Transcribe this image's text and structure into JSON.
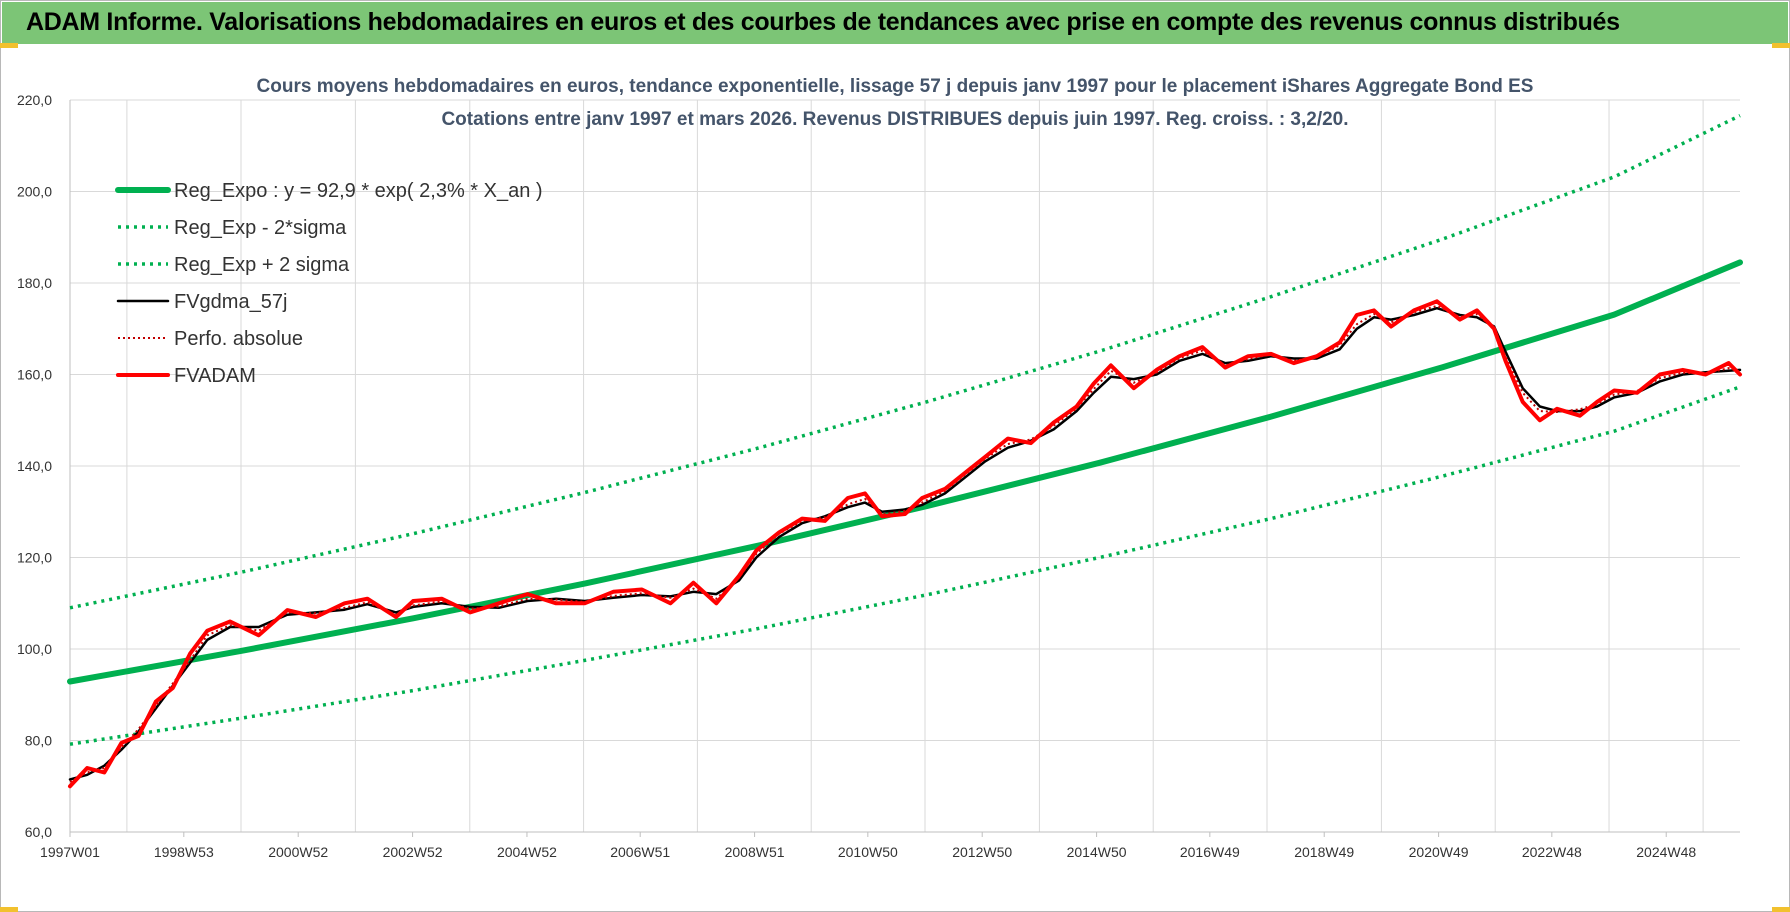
{
  "banner": {
    "title": "ADAM Informe. Valorisations hebdomadaires en euros et des courbes de tendances avec prise en compte des revenus connus distribués"
  },
  "colors": {
    "banner_bg": "#7cc576",
    "trend_green": "#00b050",
    "smooth_black": "#000000",
    "price_red": "#ff0000",
    "perf_red": "#c00000",
    "grid": "#d9d9d9",
    "title_text": "#44546a"
  },
  "chart_data": {
    "type": "line",
    "title_line1": "Cours moyens hebdomadaires en euros, tendance exponentielle, lissage 57 j depuis janv 1997 pour le placement iShares Aggregate Bond ES",
    "title_line2": "Cotations entre janv 1997 et mars 2026. Revenus DISTRIBUES depuis juin 1997. Reg. croiss. : 3,2/20.",
    "x_range": [
      1997.0,
      2026.2
    ],
    "ylim": [
      60,
      220
    ],
    "y_ticks": [
      60,
      80,
      100,
      120,
      140,
      160,
      180,
      200,
      220
    ],
    "y_tick_labels": [
      "60,0",
      "80,0",
      "100,0",
      "120,0",
      "140,0",
      "160,0",
      "180,0",
      "200,0",
      "220,0"
    ],
    "x_ticks": [
      1997.0,
      1998.99,
      2000.99,
      2002.99,
      2004.99,
      2006.97,
      2008.97,
      2010.95,
      2012.95,
      2014.95,
      2016.93,
      2018.93,
      2020.93,
      2022.91,
      2024.91
    ],
    "x_tick_labels": [
      "1997W01",
      "1998W53",
      "2000W52",
      "2002W52",
      "2004W52",
      "2006W51",
      "2008W51",
      "2010W50",
      "2012W50",
      "2014W50",
      "2016W49",
      "2018W49",
      "2020W49",
      "2022W48",
      "2024W48"
    ],
    "grid": true,
    "legend_position": "top-left",
    "series": [
      {
        "name": "Reg_Expo : y = 92,9 * exp( 2,3% *  X_an )",
        "style": "solid-thick",
        "color": "#00b050",
        "x": [
          1997.0,
          2000.0,
          2003.0,
          2006.0,
          2009.0,
          2012.0,
          2015.0,
          2018.0,
          2021.0,
          2024.0,
          2026.2
        ],
        "values": [
          92.9,
          99.6,
          106.7,
          114.3,
          122.5,
          131.3,
          140.7,
          150.8,
          161.6,
          173.1,
          184.5
        ]
      },
      {
        "name": "Reg_Exp - 2*sigma",
        "style": "dotted",
        "color": "#00b050",
        "x": [
          1997.0,
          2000.0,
          2003.0,
          2006.0,
          2009.0,
          2012.0,
          2015.0,
          2018.0,
          2021.0,
          2024.0,
          2026.2
        ],
        "values": [
          79.2,
          84.9,
          90.9,
          97.5,
          104.4,
          111.9,
          120.0,
          128.5,
          137.8,
          147.6,
          157.3
        ]
      },
      {
        "name": "Reg_Exp + 2 sigma",
        "style": "dotted",
        "color": "#00b050",
        "x": [
          1997.0,
          2000.0,
          2003.0,
          2006.0,
          2009.0,
          2012.0,
          2015.0,
          2018.0,
          2021.0,
          2024.0,
          2026.2
        ],
        "values": [
          109.0,
          116.8,
          125.2,
          134.2,
          143.8,
          154.1,
          165.1,
          177.0,
          189.6,
          203.2,
          216.6
        ]
      },
      {
        "name": "FVgdma_57j",
        "style": "solid",
        "color": "#000000",
        "x": [
          1997.0,
          1997.3,
          1997.6,
          1997.9,
          1998.2,
          1998.5,
          1998.8,
          1999.1,
          1999.4,
          1999.8,
          2000.3,
          2000.8,
          2001.3,
          2001.8,
          2002.2,
          2002.7,
          2003.0,
          2003.5,
          2004.0,
          2004.5,
          2005.0,
          2005.5,
          2006.0,
          2006.5,
          2007.0,
          2007.5,
          2007.9,
          2008.3,
          2008.7,
          2009.0,
          2009.4,
          2009.8,
          2010.2,
          2010.6,
          2010.9,
          2011.2,
          2011.6,
          2011.9,
          2012.3,
          2012.7,
          2013.0,
          2013.4,
          2013.8,
          2014.2,
          2014.6,
          2014.9,
          2015.2,
          2015.6,
          2016.0,
          2016.4,
          2016.8,
          2017.2,
          2017.6,
          2018.0,
          2018.4,
          2018.8,
          2019.2,
          2019.5,
          2019.8,
          2020.1,
          2020.5,
          2020.9,
          2021.3,
          2021.6,
          2021.9,
          2022.1,
          2022.4,
          2022.7,
          2023.0,
          2023.4,
          2023.7,
          2024.0,
          2024.4,
          2024.8,
          2025.2,
          2025.6,
          2026.0,
          2026.2
        ],
        "values": [
          71.5,
          72.5,
          74.5,
          78.0,
          82.0,
          87.0,
          92.0,
          97.0,
          102.0,
          104.8,
          104.8,
          107.5,
          108.0,
          108.6,
          109.8,
          108.0,
          109.2,
          110.0,
          109.2,
          109.0,
          110.5,
          111.0,
          110.5,
          111.2,
          111.8,
          111.5,
          112.5,
          112.0,
          115.0,
          120.0,
          124.5,
          127.5,
          129.0,
          131.0,
          132.0,
          130.0,
          130.5,
          131.5,
          134.0,
          138.0,
          141.0,
          144.0,
          145.5,
          148.0,
          152.0,
          156.0,
          159.5,
          159.0,
          160.0,
          163.0,
          164.5,
          162.5,
          163.0,
          164.0,
          163.5,
          163.5,
          165.5,
          170.0,
          172.5,
          172.0,
          173.0,
          174.5,
          173.0,
          172.5,
          170.5,
          165.0,
          157.0,
          153.0,
          152.0,
          152.0,
          153.0,
          155.0,
          156.0,
          158.5,
          160.0,
          160.5,
          160.8,
          161.0
        ]
      },
      {
        "name": "Perfo. absolue",
        "style": "dotted",
        "color": "#c00000",
        "x": [
          1997.0,
          1997.3,
          1997.6,
          1997.9,
          1998.2,
          1998.5,
          1998.8,
          1999.1,
          1999.4,
          1999.8,
          2000.3,
          2000.8,
          2001.3,
          2001.8,
          2002.2,
          2002.7,
          2003.0,
          2003.5,
          2004.0,
          2004.5,
          2005.0,
          2005.5,
          2006.0,
          2006.5,
          2007.0,
          2007.5,
          2007.9,
          2008.3,
          2008.7,
          2009.0,
          2009.4,
          2009.8,
          2010.2,
          2010.6,
          2010.9,
          2011.2,
          2011.6,
          2011.9,
          2012.3,
          2012.7,
          2013.0,
          2013.4,
          2013.8,
          2014.2,
          2014.6,
          2014.9,
          2015.2,
          2015.6,
          2016.0,
          2016.4,
          2016.8,
          2017.2,
          2017.6,
          2018.0,
          2018.4,
          2018.8,
          2019.2,
          2019.5,
          2019.8,
          2020.1,
          2020.5,
          2020.9,
          2021.3,
          2021.6,
          2021.9,
          2022.1,
          2022.4,
          2022.7,
          2023.0,
          2023.4,
          2023.7,
          2024.0,
          2024.4,
          2024.8,
          2025.2,
          2025.6,
          2026.0,
          2026.2
        ],
        "values": [
          71.0,
          73.0,
          74.0,
          78.5,
          82.5,
          87.5,
          92.5,
          97.5,
          103.0,
          105.2,
          104.0,
          108.0,
          107.8,
          109.0,
          110.2,
          107.5,
          109.5,
          110.4,
          108.8,
          109.3,
          111.0,
          110.8,
          110.3,
          111.6,
          112.2,
          111.2,
          113.2,
          111.0,
          115.6,
          120.8,
          125.2,
          128.0,
          128.8,
          131.6,
          132.8,
          129.4,
          130.2,
          132.0,
          134.6,
          138.6,
          141.6,
          144.8,
          145.8,
          148.8,
          152.6,
          156.8,
          160.8,
          158.2,
          160.4,
          163.6,
          165.2,
          162.0,
          163.4,
          164.4,
          163.0,
          163.8,
          166.4,
          171.0,
          173.2,
          171.4,
          173.6,
          175.0,
          172.6,
          173.2,
          170.0,
          164.0,
          156.0,
          152.0,
          151.8,
          152.4,
          153.6,
          155.6,
          156.4,
          159.2,
          160.4,
          160.2,
          161.4,
          160.6
        ]
      },
      {
        "name": "FVADAM",
        "style": "solid-thick",
        "color": "#ff0000",
        "x": [
          1997.0,
          1997.3,
          1997.6,
          1997.9,
          1998.2,
          1998.5,
          1998.8,
          1999.1,
          1999.4,
          1999.8,
          2000.3,
          2000.8,
          2001.3,
          2001.8,
          2002.2,
          2002.7,
          2003.0,
          2003.5,
          2004.0,
          2004.5,
          2005.0,
          2005.5,
          2006.0,
          2006.5,
          2007.0,
          2007.5,
          2007.9,
          2008.3,
          2008.7,
          2009.0,
          2009.4,
          2009.8,
          2010.2,
          2010.6,
          2010.9,
          2011.2,
          2011.6,
          2011.9,
          2012.3,
          2012.7,
          2013.0,
          2013.4,
          2013.8,
          2014.2,
          2014.6,
          2014.9,
          2015.2,
          2015.6,
          2016.0,
          2016.4,
          2016.8,
          2017.2,
          2017.6,
          2018.0,
          2018.4,
          2018.8,
          2019.2,
          2019.5,
          2019.8,
          2020.1,
          2020.5,
          2020.9,
          2021.3,
          2021.6,
          2021.9,
          2022.1,
          2022.4,
          2022.7,
          2023.0,
          2023.4,
          2023.7,
          2024.0,
          2024.4,
          2024.8,
          2025.2,
          2025.6,
          2026.0,
          2026.2
        ],
        "values": [
          70.0,
          74.0,
          73.0,
          79.5,
          81.0,
          88.5,
          91.5,
          99.0,
          104.0,
          106.0,
          103.0,
          108.5,
          107.0,
          110.0,
          111.0,
          107.0,
          110.5,
          111.0,
          108.0,
          110.0,
          112.0,
          110.0,
          110.0,
          112.5,
          113.0,
          110.0,
          114.5,
          110.0,
          116.0,
          121.5,
          125.5,
          128.5,
          128.0,
          133.0,
          134.0,
          129.0,
          129.5,
          133.0,
          135.0,
          139.0,
          142.0,
          146.0,
          145.0,
          149.5,
          153.0,
          158.0,
          162.0,
          157.0,
          161.0,
          164.0,
          166.0,
          161.5,
          164.0,
          164.5,
          162.5,
          164.0,
          167.0,
          173.0,
          174.0,
          170.5,
          174.0,
          176.0,
          172.0,
          174.0,
          170.0,
          163.0,
          154.0,
          150.0,
          152.5,
          151.0,
          154.0,
          156.5,
          156.0,
          160.0,
          161.0,
          160.0,
          162.5,
          160.0
        ]
      }
    ]
  }
}
